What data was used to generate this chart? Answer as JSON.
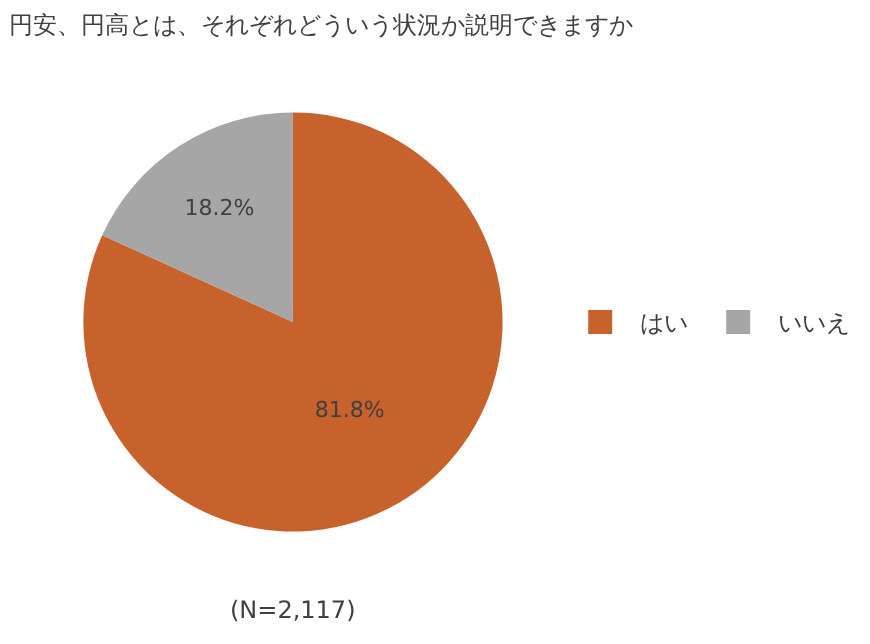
{
  "chart_data": {
    "type": "pie",
    "title": "円安、円高とは、それぞれどういう状況か説明できますか",
    "categories": [
      "はい",
      "いいえ"
    ],
    "values": [
      81.8,
      18.2
    ],
    "colors": [
      "#c8622d",
      "#a6a6a6"
    ],
    "value_labels": [
      "81.8%",
      "18.2%"
    ],
    "legend": "right",
    "annotations": [
      "(N=2,117)"
    ]
  }
}
